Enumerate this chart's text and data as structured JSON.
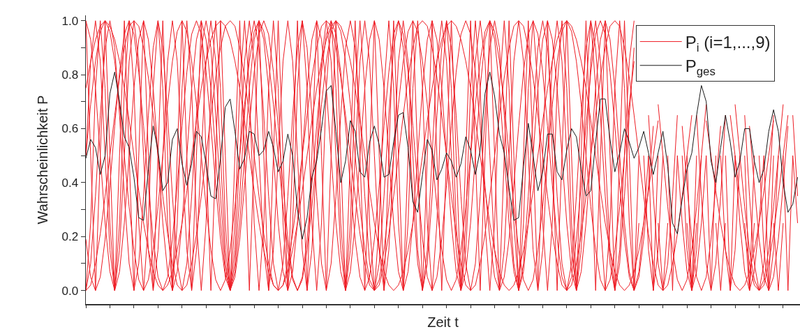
{
  "chart_data": {
    "type": "line",
    "xlabel": "Zeit t",
    "ylabel": "Wahrscheinlichkeit P",
    "ylim": [
      -0.05,
      1.02
    ],
    "categories": [
      null,
      null,
      null,
      null,
      null,
      null,
      null,
      null,
      null,
      null,
      null,
      null,
      null,
      null,
      null,
      null,
      null,
      null,
      null,
      null,
      null,
      null,
      null,
      null,
      null,
      null,
      null,
      null,
      null,
      null,
      null,
      null,
      null,
      null,
      null,
      null,
      null,
      null,
      null,
      null,
      null,
      null,
      null,
      null,
      null,
      null,
      null,
      null,
      null,
      null,
      null,
      null,
      null,
      null,
      null,
      null,
      null,
      null,
      null,
      null,
      null,
      null,
      null,
      null,
      null,
      null,
      null,
      null,
      null,
      null,
      null,
      null,
      null,
      null,
      null,
      null,
      null,
      null,
      null,
      null,
      null,
      null,
      null,
      null,
      null,
      null,
      null,
      null,
      null,
      null,
      null,
      null,
      null,
      null,
      null,
      null,
      null,
      null,
      null,
      null,
      null,
      null,
      null,
      null,
      null,
      null,
      null,
      null,
      null,
      null,
      null,
      null,
      null,
      null,
      null,
      null,
      null,
      null,
      null,
      null,
      null,
      null,
      null,
      null,
      null,
      null,
      null,
      null,
      null,
      null,
      null,
      null,
      null,
      null,
      null,
      null,
      null,
      null,
      null,
      null,
      null,
      null,
      null,
      null,
      null,
      null,
      null,
      null,
      null
    ],
    "yticks": [
      {
        "value": 0,
        "label": "0.0"
      },
      {
        "value": 0.1,
        "label": null
      },
      {
        "value": 0.2,
        "label": "0.2"
      },
      {
        "value": 0.3,
        "label": null
      },
      {
        "value": 0.4,
        "label": "0.4"
      },
      {
        "value": 0.5,
        "label": null
      },
      {
        "value": 0.6,
        "label": "0.6"
      },
      {
        "value": 0.7,
        "label": null
      },
      {
        "value": 0.8,
        "label": "0.8"
      },
      {
        "value": 0.9,
        "label": null
      },
      {
        "value": 1,
        "label": "1.0"
      }
    ],
    "tick_labels": "y",
    "grid": false,
    "legend": "top right",
    "marker": "none",
    "line_style": "solid",
    "series": [
      {
        "name": "P$_{i}$ (i=1,...,9)",
        "color": "#ee1c24",
        "values": [
          1,
          0.5,
          0,
          0.5,
          1,
          0.5,
          0,
          0.5,
          1,
          0.5,
          0,
          0.5,
          1,
          0.5,
          0,
          0.5,
          1,
          0.5,
          0,
          0.5,
          1,
          0.5,
          0,
          0.5,
          1,
          0.5,
          0,
          0.5,
          1,
          0.5,
          0,
          0.5,
          1,
          0.5,
          0,
          0.5,
          1,
          0.5,
          0,
          0.5,
          1,
          0.5,
          0,
          0.5,
          1,
          0.5,
          0,
          0.5,
          1,
          0.5,
          0,
          0.5,
          1,
          0.5,
          0,
          0.5,
          1,
          0.5,
          0,
          0.5,
          1,
          0.5,
          0,
          0.5,
          1,
          0.5,
          0,
          0.5,
          1,
          0.5,
          0,
          0.5,
          1,
          0.5,
          0,
          0.5,
          1,
          0.5,
          0,
          0.5,
          1,
          0.5,
          0,
          0.5,
          1,
          0.5,
          0,
          0.5,
          1,
          0.5,
          0,
          0.5,
          1,
          0.5,
          0,
          0.5,
          1,
          0.5,
          0,
          0.5,
          1,
          0.5,
          0,
          0.5,
          1,
          0.5,
          0,
          0.5,
          1,
          0.5,
          0,
          0.5,
          1,
          0.5,
          0,
          0.5,
          null,
          0.5,
          0,
          0.5,
          null,
          0.5,
          0,
          0.5,
          null,
          0.5,
          0,
          0.5,
          null,
          0.5,
          0,
          0.5,
          null,
          0.5,
          0,
          0.5,
          null,
          0.5,
          0,
          0.5,
          null,
          0.5,
          0,
          0.5,
          null,
          0.5,
          0,
          0.5,
          null
        ]
      },
      {
        "color": "#ee1d24",
        "values": [
          0,
          0.25,
          0.75,
          1,
          0.75,
          0.25,
          0,
          0.25,
          0.75,
          1,
          0.75,
          0.25,
          0,
          0.25,
          0.75,
          1,
          0.75,
          0.25,
          0,
          0.25,
          0.75,
          1,
          0.75,
          0.25,
          0,
          0.25,
          0.75,
          1,
          0.75,
          0.25,
          0,
          0.25,
          0.75,
          1,
          0.75,
          0.25,
          0,
          0.25,
          0.75,
          1,
          0.75,
          0.25,
          0,
          0.25,
          0.75,
          1,
          0.75,
          0.25,
          0,
          0.25,
          0.75,
          1,
          0.75,
          0.25,
          0,
          0.25,
          0.75,
          1,
          0.75,
          0.25,
          0,
          0.25,
          0.75,
          1,
          0.75,
          0.25,
          0,
          0.25,
          0.75,
          1,
          0.75,
          0.25,
          0,
          0.25,
          0.75,
          1,
          0.75,
          0.25,
          0,
          0.25,
          0.75,
          1,
          0.75,
          0.25,
          0,
          0.25,
          0.75,
          1,
          0.75,
          0.25,
          0,
          0.25,
          0.75,
          1,
          0.75,
          0.25,
          0,
          0.25,
          0.75,
          1,
          0.75,
          0.25,
          0,
          0.25,
          0.75,
          1,
          0.75,
          0.25,
          0,
          0.25,
          0.75,
          1,
          0.75,
          0.25,
          0,
          0.25,
          null,
          null,
          null,
          0.25,
          0,
          0.25,
          null,
          null,
          null,
          0.25,
          0,
          0.25,
          null,
          null,
          null,
          0.25,
          0,
          0.25,
          null,
          null,
          null,
          0.25,
          0,
          0.25,
          null,
          null,
          null,
          0.25,
          0,
          0.25,
          null,
          null,
          null
        ]
      },
      {
        "color": "#ee1c25",
        "values": [
          0.5,
          0.85,
          1,
          0.85,
          0.5,
          0.15,
          0,
          0.15,
          0.5,
          0.85,
          1,
          0.85,
          0.5,
          0.15,
          0,
          0.15,
          0.5,
          0.85,
          1,
          0.85,
          0.5,
          0.15,
          0,
          0.15,
          0.5,
          0.85,
          1,
          0.85,
          0.5,
          0.15,
          0,
          0.15,
          0.5,
          0.85,
          1,
          0.85,
          0.5,
          0.15,
          0,
          0.15,
          0.5,
          0.85,
          1,
          0.85,
          0.5,
          0.15,
          0,
          0.15,
          0.5,
          0.85,
          1,
          0.85,
          0.5,
          0.15,
          0,
          0.15,
          0.5,
          0.85,
          1,
          0.85,
          0.5,
          0.15,
          0,
          0.15,
          0.5,
          0.85,
          1,
          0.85,
          0.5,
          0.15,
          0,
          0.15,
          0.5,
          0.85,
          1,
          0.85,
          0.5,
          0.15,
          0,
          0.15,
          0.5,
          0.85,
          1,
          0.85,
          0.5,
          0.15,
          0,
          0.15,
          0.5,
          0.85,
          1,
          0.85,
          0.5,
          0.15,
          0,
          0.15,
          0.5,
          0.85,
          1,
          0.85,
          0.5,
          0.15,
          0,
          0.15,
          0.5,
          0.85,
          1,
          0.85,
          0.5,
          0.15,
          0,
          0.15,
          0.5,
          0.85,
          1,
          null,
          0.5,
          0.15,
          0,
          0.15,
          0.5,
          null,
          null,
          null,
          0.5,
          0.15,
          0,
          0.15,
          0.5,
          null,
          null,
          null,
          0.5,
          0.15,
          0,
          0.15,
          0.5,
          null,
          null,
          null,
          0.5,
          0.15,
          0,
          0.15,
          0.5,
          null,
          null,
          null,
          null
        ]
      },
      {
        "color": "#ed1c24",
        "values": [
          0,
          0.1,
          0.35,
          0.65,
          0.9,
          1,
          0.9,
          0.65,
          0.35,
          0.1,
          0,
          0.1,
          0.35,
          0.65,
          0.9,
          1,
          0.9,
          0.65,
          0.35,
          0.1,
          0,
          0.1,
          0.35,
          0.65,
          0.9,
          1,
          0.9,
          0.65,
          0.35,
          0.1,
          0,
          0.1,
          0.35,
          0.65,
          0.9,
          1,
          0.9,
          0.65,
          0.35,
          0.1,
          0,
          0.1,
          0.35,
          0.65,
          0.9,
          1,
          0.9,
          0.65,
          0.35,
          0.1,
          0,
          0.1,
          0.35,
          0.65,
          0.9,
          1,
          0.9,
          0.65,
          0.35,
          0.1,
          0,
          0.1,
          0.35,
          0.65,
          0.9,
          1,
          0.9,
          0.65,
          0.35,
          0.1,
          0,
          0.1,
          0.35,
          0.65,
          0.9,
          1,
          0.9,
          0.65,
          0.35,
          0.1,
          0,
          0.1,
          0.35,
          0.65,
          0.9,
          1,
          0.9,
          0.65,
          0.35,
          0.1,
          0,
          0.1,
          0.35,
          0.65,
          0.9,
          1,
          0.9,
          0.65,
          0.35,
          0.1,
          0,
          0.1,
          0.35,
          0.65,
          0.9,
          1,
          0.9,
          0.65,
          0.35,
          0.1,
          0,
          0.1,
          0.35,
          0.65,
          0.9,
          null,
          null,
          0.65,
          0.35,
          0.1,
          0,
          0.1,
          0.35,
          0.65,
          null,
          null,
          null,
          0.65,
          0.35,
          0.1,
          0,
          0.1,
          0.35,
          0.65,
          null,
          null,
          null,
          0.65,
          0.35,
          0.1,
          0,
          0.1,
          0.35,
          0.65,
          null,
          null,
          null,
          0.65,
          0.35
        ]
      },
      {
        "color": "#ef1c24",
        "values": [
          1,
          0.93,
          0.75,
          0.5,
          0.25,
          0.07,
          0,
          0.07,
          0.25,
          0.5,
          0.75,
          0.93,
          1,
          0.93,
          0.75,
          0.5,
          0.25,
          0.07,
          0,
          0.07,
          0.25,
          0.5,
          0.75,
          0.93,
          1,
          0.93,
          0.75,
          0.5,
          0.25,
          0.07,
          0,
          0.07,
          0.25,
          0.5,
          0.75,
          0.93,
          1,
          0.93,
          0.75,
          0.5,
          0.25,
          0.07,
          0,
          0.07,
          0.25,
          0.5,
          0.75,
          0.93,
          1,
          0.93,
          0.75,
          0.5,
          0.25,
          0.07,
          0,
          0.07,
          0.25,
          0.5,
          0.75,
          0.93,
          1,
          0.93,
          0.75,
          0.5,
          0.25,
          0.07,
          0,
          0.07,
          0.25,
          0.5,
          0.75,
          0.93,
          1,
          0.93,
          0.75,
          0.5,
          0.25,
          0.07,
          0,
          0.07,
          0.25,
          0.5,
          0.75,
          0.93,
          1,
          0.93,
          0.75,
          0.5,
          0.25,
          0.07,
          0,
          0.07,
          0.25,
          0.5,
          0.75,
          0.93,
          1,
          0.93,
          0.75,
          0.5,
          0.25,
          0.07,
          0,
          0.07,
          0.25,
          0.5,
          0.75,
          0.93,
          1,
          0.93,
          0.75,
          0.5,
          0.25,
          0.07,
          0,
          0.07,
          0.25,
          0.5,
          null,
          null,
          null,
          null,
          null,
          0.5,
          0.25,
          0.07,
          0,
          0.07,
          0.25,
          0.5,
          null,
          null,
          null,
          null,
          null,
          0.5,
          0.25,
          0.07,
          0,
          0.07,
          0.25,
          0.5,
          null,
          null,
          null,
          null,
          null,
          0.5,
          0.25
        ]
      },
      {
        "color": "#ee1b24",
        "values": [
          0.19,
          0.05,
          0,
          0.05,
          0.19,
          0.39,
          0.61,
          0.81,
          0.95,
          1,
          0.95,
          0.81,
          0.61,
          0.39,
          0.19,
          0.05,
          0,
          0.05,
          0.19,
          0.39,
          0.61,
          0.81,
          0.95,
          1,
          0.95,
          0.81,
          0.61,
          0.39,
          0.19,
          0.05,
          0,
          0.05,
          0.19,
          0.39,
          0.61,
          0.81,
          0.95,
          1,
          0.95,
          0.81,
          0.61,
          0.39,
          0.19,
          0.05,
          0,
          0.05,
          0.19,
          0.39,
          0.61,
          0.81,
          0.95,
          1,
          0.95,
          0.81,
          0.61,
          0.39,
          0.19,
          0.05,
          0,
          0.05,
          0.19,
          0.39,
          0.61,
          0.81,
          0.95,
          1,
          0.95,
          0.81,
          0.61,
          0.39,
          0.19,
          0.05,
          0,
          0.05,
          0.19,
          0.39,
          0.61,
          0.81,
          0.95,
          1,
          0.95,
          0.81,
          0.61,
          0.39,
          0.19,
          0.05,
          0,
          0.05,
          0.19,
          0.39,
          0.61,
          0.81,
          0.95,
          1,
          0.95,
          0.81,
          0.61,
          0.39,
          0.19,
          0.05,
          0,
          0.05,
          0.19,
          0.39,
          0.61,
          0.81,
          0.95,
          1,
          0.95,
          0.81,
          0.61,
          0.39,
          0.19,
          0.05,
          0,
          0.05,
          0.19,
          0.39,
          0.61,
          null,
          null,
          null,
          null,
          null,
          0.61,
          0.39,
          0.19,
          0.05,
          0,
          0.05,
          0.19,
          0.39,
          0.61,
          null,
          null,
          null,
          null,
          null,
          0.61,
          0.39,
          0.19,
          0.05,
          0,
          0.05,
          0.19,
          0.39,
          0.61,
          null,
          null
        ]
      },
      {
        "color": "#ee1c23",
        "values": [
          0.5,
          0.69,
          0.85,
          0.96,
          1,
          0.96,
          0.85,
          0.69,
          0.5,
          0.31,
          0.15,
          0.04,
          0,
          0.04,
          0.15,
          0.31,
          0.5,
          0.69,
          0.85,
          0.96,
          1,
          0.96,
          0.85,
          0.69,
          0.5,
          0.31,
          0.15,
          0.04,
          0,
          0.04,
          0.15,
          0.31,
          0.5,
          0.69,
          0.85,
          0.96,
          1,
          0.96,
          0.85,
          0.69,
          0.5,
          0.31,
          0.15,
          0.04,
          0,
          0.04,
          0.15,
          0.31,
          0.5,
          0.69,
          0.85,
          0.96,
          1,
          0.96,
          0.85,
          0.69,
          0.5,
          0.31,
          0.15,
          0.04,
          0,
          0.04,
          0.15,
          0.31,
          0.5,
          0.69,
          0.85,
          0.96,
          1,
          0.96,
          0.85,
          0.69,
          0.5,
          0.31,
          0.15,
          0.04,
          0,
          0.04,
          0.15,
          0.31,
          0.5,
          0.69,
          0.85,
          0.96,
          1,
          0.96,
          0.85,
          0.69,
          0.5,
          0.31,
          0.15,
          0.04,
          0,
          0.04,
          0.15,
          0.31,
          0.5,
          0.69,
          0.85,
          0.96,
          1,
          0.96,
          0.85,
          0.69,
          0.5,
          0.31,
          0.15,
          0.04,
          0,
          0.04,
          0.15,
          0.31,
          0.5,
          0.69,
          0.85,
          null,
          null,
          null,
          null,
          0.69,
          0.5,
          0.31,
          0.15,
          0.04,
          0,
          0.04,
          0.15,
          0.31,
          0.5,
          0.69,
          null,
          null,
          null,
          null,
          null,
          0.69,
          0.5,
          0.31,
          0.15,
          0.04,
          0,
          0.04,
          0.15,
          0.31,
          0.5,
          0.69,
          null,
          null,
          null
        ]
      },
      {
        "color": "#ed1d24",
        "values": [
          0,
          0.02,
          0.1,
          0.21,
          0.35,
          0.5,
          0.65,
          0.79,
          0.9,
          0.98,
          1,
          0.98,
          0.9,
          0.79,
          0.65,
          0.5,
          0.35,
          0.21,
          0.1,
          0.02,
          0,
          0.02,
          0.1,
          0.21,
          0.35,
          0.5,
          0.65,
          0.79,
          0.9,
          0.98,
          1,
          0.98,
          0.9,
          0.79,
          0.65,
          0.5,
          0.35,
          0.21,
          0.1,
          0.02,
          0,
          0.02,
          0.1,
          0.21,
          0.35,
          0.5,
          0.65,
          0.79,
          0.9,
          0.98,
          1,
          0.98,
          0.9,
          0.79,
          0.65,
          0.5,
          0.35,
          0.21,
          0.1,
          0.02,
          0,
          0.02,
          0.1,
          0.21,
          0.35,
          0.5,
          0.65,
          0.79,
          0.9,
          0.98,
          1,
          0.98,
          0.9,
          0.79,
          0.65,
          0.5,
          0.35,
          0.21,
          0.1,
          0.02,
          0,
          0.02,
          0.1,
          0.21,
          0.35,
          0.5,
          0.65,
          0.79,
          0.9,
          0.98,
          1,
          0.98,
          0.9,
          0.79,
          0.65,
          0.5,
          0.35,
          0.21,
          0.1,
          0.02,
          0,
          0.02,
          0.1,
          0.21,
          0.35,
          0.5,
          0.65,
          0.79,
          0.9,
          0.98,
          1,
          0.98,
          0.9,
          0.79,
          0.65,
          0.5,
          0.35,
          0.21,
          0.1,
          0.02,
          0,
          0.02,
          0.1,
          0.21,
          0.35,
          0.5,
          0.65,
          null,
          null,
          null,
          null,
          null,
          null,
          null,
          0.65,
          0.5,
          0.35,
          0.21,
          0.1,
          0.02,
          0,
          0.02,
          0.1,
          0.21,
          0.35,
          0.5,
          0.65,
          null,
          null
        ]
      },
      {
        "color": "#ef1d25",
        "values": [
          0.75,
          0.85,
          0.93,
          0.98,
          1,
          0.98,
          0.93,
          0.85,
          0.75,
          0.63,
          0.5,
          0.37,
          0.25,
          0.15,
          0.07,
          0.02,
          0,
          0.02,
          0.07,
          0.15,
          0.25,
          0.37,
          0.5,
          0.63,
          0.75,
          0.85,
          0.93,
          0.98,
          1,
          0.98,
          0.93,
          0.85,
          0.75,
          0.63,
          0.5,
          0.37,
          0.25,
          0.15,
          0.07,
          0.02,
          0,
          0.02,
          0.07,
          0.15,
          0.25,
          0.37,
          0.5,
          0.63,
          0.75,
          0.85,
          0.93,
          0.98,
          1,
          0.98,
          0.93,
          0.85,
          0.75,
          0.63,
          0.5,
          0.37,
          0.25,
          0.15,
          0.07,
          0.02,
          0,
          0.02,
          0.07,
          0.15,
          0.25,
          0.37,
          0.5,
          0.63,
          0.75,
          0.85,
          0.93,
          0.98,
          1,
          0.98,
          0.93,
          0.85,
          0.75,
          0.63,
          0.5,
          0.37,
          0.25,
          0.15,
          0.07,
          0.02,
          0,
          0.02,
          0.07,
          0.15,
          0.25,
          0.37,
          0.5,
          0.63,
          0.75,
          0.85,
          0.93,
          0.98,
          1,
          0.98,
          0.93,
          0.85,
          0.75,
          0.63,
          0.5,
          0.37,
          0.25,
          0.15,
          0.07,
          0.02,
          0,
          0.02,
          0.07,
          0.15,
          0.25,
          0.37,
          0.5,
          0.63,
          null,
          null,
          null,
          null,
          null,
          null,
          null,
          null,
          null,
          0.63,
          0.5,
          0.37,
          0.25,
          0.15,
          0.07,
          0.02,
          0,
          0.02,
          0.07,
          0.15,
          0.25,
          0.37,
          0.5,
          0.63,
          null,
          null,
          null,
          null,
          null
        ]
      },
      {
        "name": "P$_{ges}$",
        "color": "#1a1a1a",
        "values": [
          0.49,
          0.56,
          0.53,
          0.43,
          0.5,
          0.73,
          0.81,
          0.7,
          0.57,
          0.53,
          0.42,
          0.27,
          0.26,
          0.45,
          0.61,
          0.52,
          0.37,
          0.4,
          0.56,
          0.6,
          0.47,
          0.39,
          0.47,
          0.59,
          0.57,
          0.47,
          0.35,
          0.34,
          0.49,
          0.68,
          0.71,
          0.59,
          0.45,
          0.49,
          0.59,
          0.58,
          0.5,
          0.52,
          0.59,
          0.53,
          0.44,
          0.48,
          0.58,
          0.5,
          0.3,
          0.19,
          0.27,
          0.42,
          0.48,
          0.6,
          0.74,
          0.76,
          0.59,
          0.4,
          0.48,
          0.63,
          0.59,
          0.44,
          0.42,
          0.55,
          0.61,
          0.54,
          0.42,
          0.43,
          0.55,
          0.65,
          0.66,
          0.53,
          0.33,
          0.29,
          0.43,
          0.56,
          0.52,
          0.41,
          0.45,
          0.51,
          0.48,
          0.42,
          0.47,
          0.57,
          0.52,
          0.43,
          0.52,
          0.73,
          0.81,
          0.72,
          0.58,
          0.51,
          0.38,
          0.26,
          0.27,
          0.46,
          0.62,
          0.5,
          0.37,
          0.44,
          0.58,
          0.58,
          0.44,
          0.41,
          0.52,
          0.6,
          0.57,
          0.45,
          0.35,
          0.37,
          0.55,
          0.71,
          0.71,
          0.56,
          0.44,
          0.51,
          0.6,
          0.55,
          0.49,
          0.53,
          0.59,
          0.51,
          0.43,
          0.51,
          0.59,
          0.46,
          0.25,
          0.21,
          0.34,
          0.45,
          0.51,
          0.65,
          0.76,
          0.7,
          0.48,
          0.4,
          0.53,
          0.65,
          0.55,
          0.42,
          0.48,
          0.6,
          0.6,
          0.48,
          0.4,
          0.45,
          0.59,
          0.67,
          0.59,
          0.4,
          0.29,
          0.32,
          0.42
        ]
      }
    ]
  }
}
